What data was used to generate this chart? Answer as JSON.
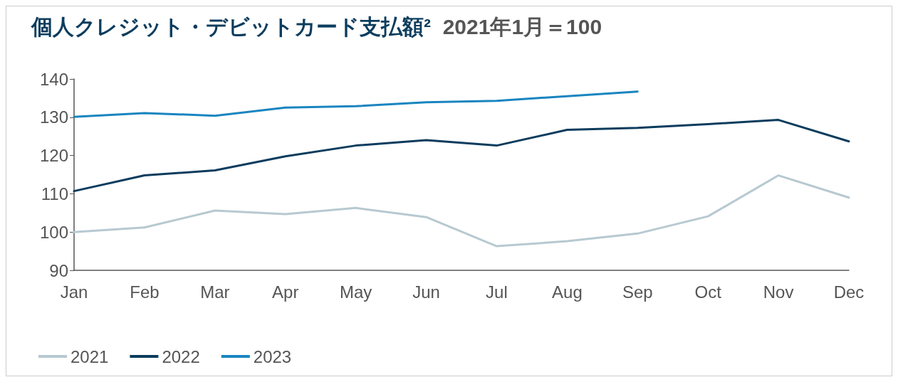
{
  "chart_data": {
    "type": "line",
    "title": "個人クレジット・デビットカード支払額²",
    "subtitle": "2021年1月＝100",
    "categories": [
      "Jan",
      "Feb",
      "Mar",
      "Apr",
      "May",
      "Jun",
      "Jul",
      "Aug",
      "Sep",
      "Oct",
      "Nov",
      "Dec"
    ],
    "series": [
      {
        "name": "2021",
        "color": "#b7c9d1",
        "values": [
          100,
          101.2,
          105.6,
          104.7,
          106.3,
          103.9,
          96.3,
          97.6,
          99.6,
          104.1,
          114.8,
          109.0
        ]
      },
      {
        "name": "2022",
        "color": "#0b3c5d",
        "values": [
          110.7,
          114.8,
          116.1,
          119.8,
          122.6,
          124.0,
          122.6,
          126.7,
          127.2,
          128.2,
          129.3,
          123.7
        ]
      },
      {
        "name": "2023",
        "color": "#1a85c0",
        "values": [
          130.1,
          131.1,
          130.4,
          132.5,
          132.9,
          133.9,
          134.3,
          135.5,
          136.7,
          null,
          null,
          null
        ]
      }
    ],
    "ylim": [
      90,
      140
    ],
    "yticks": [
      90,
      100,
      110,
      120,
      130,
      140
    ],
    "grid": false,
    "legend": "bottom left",
    "marker": "none",
    "line_style": "solid"
  }
}
